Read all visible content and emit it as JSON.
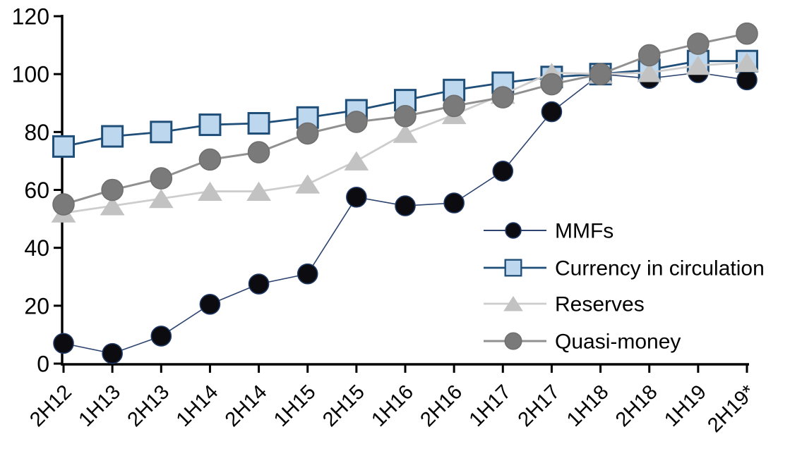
{
  "chart_data": {
    "type": "line",
    "title": "",
    "xlabel": "",
    "ylabel": "",
    "categories": [
      "2H12",
      "1H13",
      "2H13",
      "1H14",
      "2H14",
      "1H15",
      "2H15",
      "1H16",
      "2H16",
      "1H17",
      "2H17",
      "1H18",
      "2H18",
      "1H19",
      "2H19*"
    ],
    "series": [
      {
        "name": "MMFs",
        "marker": "circle",
        "marker_size": 28,
        "marker_fill": "#0b0b10",
        "marker_stroke": "#1f3864",
        "line_color": "#2e4470",
        "line_width": 1.6,
        "values": [
          7,
          3.5,
          9.5,
          20.5,
          27.5,
          31,
          57.5,
          54.5,
          55.5,
          66.5,
          87,
          100,
          98.5,
          100.5,
          98
        ]
      },
      {
        "name": "Currency in circulation",
        "marker": "square",
        "marker_size": 29,
        "marker_fill": "#bdd7ee",
        "marker_stroke": "#1f4e79",
        "line_color": "#1f4e79",
        "line_width": 2.8,
        "values": [
          75,
          78.5,
          80,
          82.5,
          83,
          85,
          87.5,
          91,
          94.5,
          97,
          99,
          100,
          101.5,
          104.5,
          104.5
        ]
      },
      {
        "name": "Reserves",
        "marker": "triangle",
        "marker_size": 30,
        "marker_fill": "#c2c2c2",
        "marker_stroke": "#c2c2c2",
        "line_color": "#cdcdcd",
        "line_width": 2.8,
        "values": [
          52,
          54.5,
          57,
          59.5,
          59.5,
          62,
          70,
          79.5,
          86,
          93,
          100.5,
          100,
          100.5,
          103,
          104
        ]
      },
      {
        "name": "Quasi-money",
        "marker": "circle",
        "marker_size": 30,
        "marker_fill": "#7a7a7a",
        "marker_stroke": "#6f6f6f",
        "line_color": "#909090",
        "line_width": 3,
        "values": [
          55,
          60,
          64,
          70.5,
          73,
          79.5,
          83.5,
          85.5,
          89,
          92,
          96.5,
          100,
          106.5,
          110.5,
          114
        ]
      }
    ],
    "ylim": [
      0,
      120
    ],
    "yticks": [
      0,
      20,
      40,
      60,
      80,
      100,
      120
    ],
    "grid": false,
    "legend_position": "center-right",
    "axis_color": "#000000",
    "background": "#ffffff"
  }
}
